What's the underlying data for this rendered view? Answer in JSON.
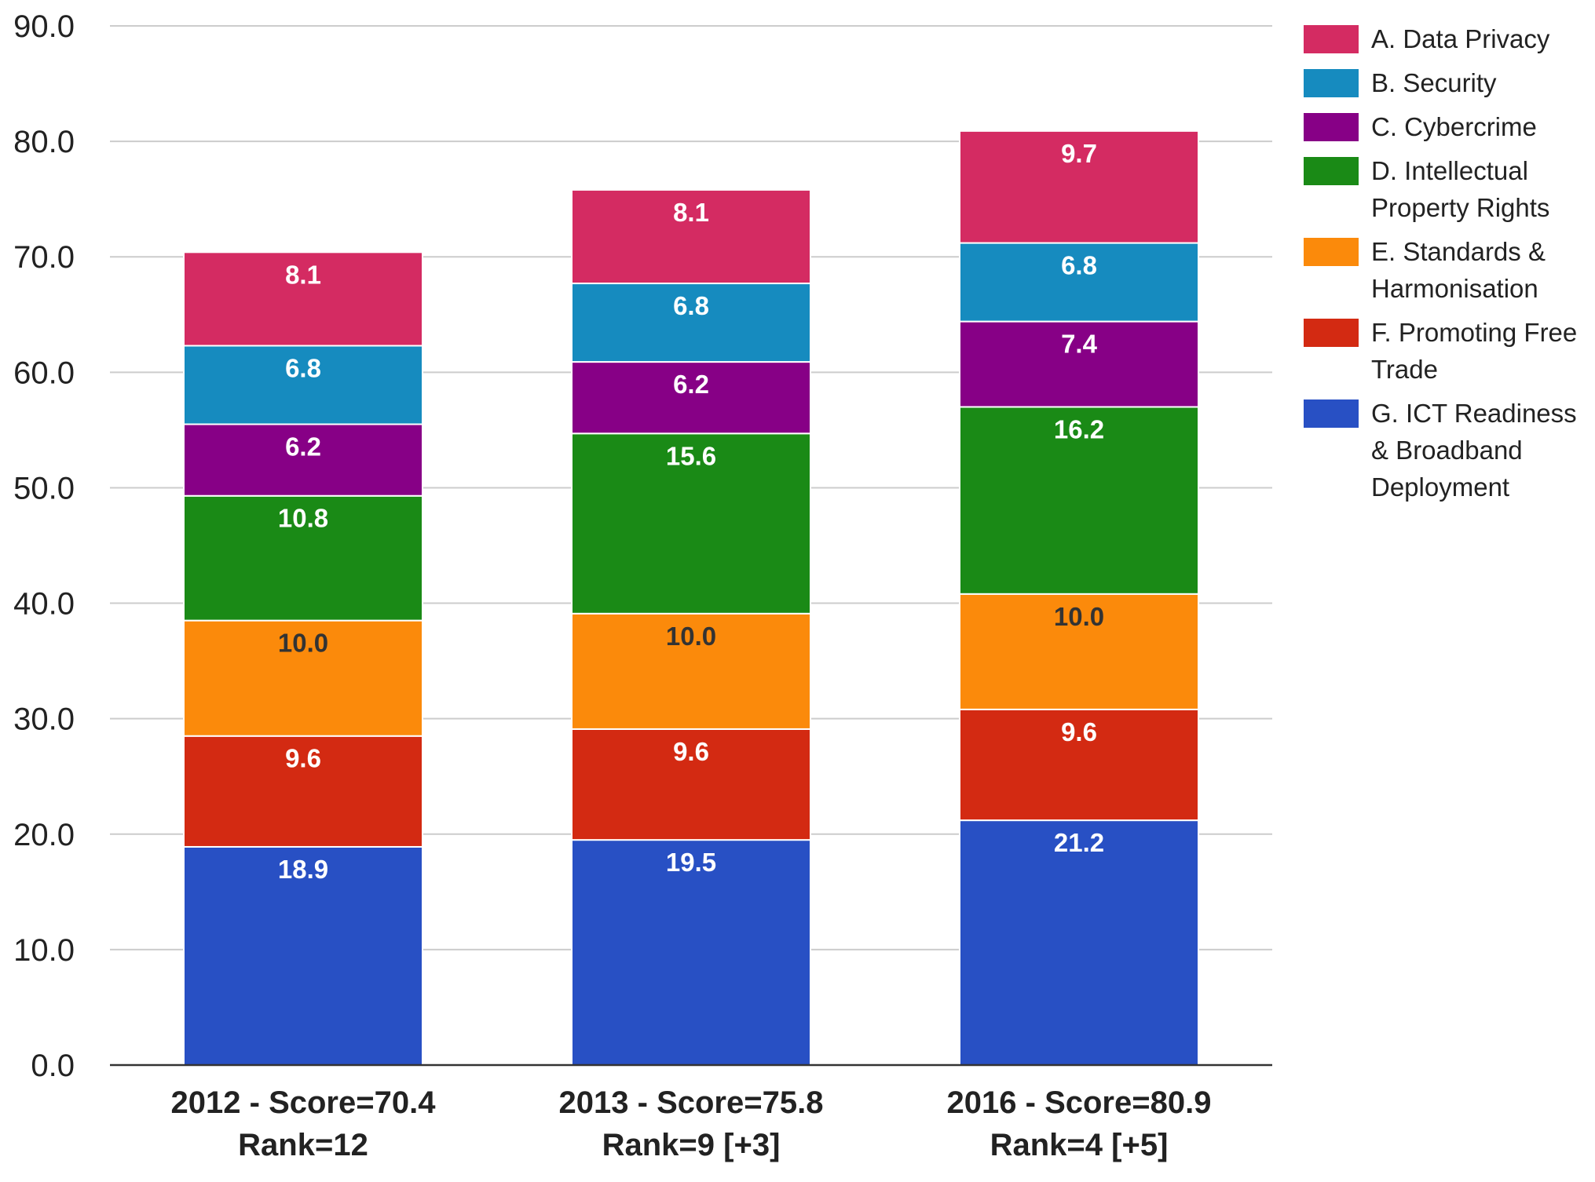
{
  "chart_data": {
    "type": "bar",
    "stacked": true,
    "categories": [
      [
        "2012 - Score=70.4",
        "Rank=12"
      ],
      [
        "2013 - Score=75.8",
        "Rank=9 [+3]"
      ],
      [
        "2016 - Score=80.9",
        "Rank=4 [+5]"
      ]
    ],
    "series": [
      {
        "name": "G. ICT Readiness & Broadband Deployment",
        "color": "#2850c4",
        "label_color": "#ffffff",
        "values": [
          18.9,
          19.5,
          21.2
        ]
      },
      {
        "name": "F. Promoting Free Trade",
        "color": "#d32a12",
        "label_color": "#ffffff",
        "values": [
          9.6,
          9.6,
          9.6
        ]
      },
      {
        "name": "E. Standards & Harmonisation",
        "color": "#fb8a0b",
        "label_color": "#333333",
        "values": [
          10.0,
          10.0,
          10.0
        ]
      },
      {
        "name": "D. Intellectual Property Rights",
        "color": "#1a8a16",
        "label_color": "#ffffff",
        "values": [
          10.8,
          15.6,
          16.2
        ]
      },
      {
        "name": "C. Cybercrime",
        "color": "#870086",
        "label_color": "#ffffff",
        "values": [
          6.2,
          6.2,
          7.4
        ]
      },
      {
        "name": "B. Security",
        "color": "#168bbf",
        "label_color": "#ffffff",
        "values": [
          6.8,
          6.8,
          6.8
        ]
      },
      {
        "name": "A. Data Privacy",
        "color": "#d42b62",
        "label_color": "#ffffff",
        "values": [
          8.1,
          8.1,
          9.7
        ]
      }
    ],
    "legend_order": [
      "A. Data Privacy",
      "B. Security",
      "C. Cybercrime",
      "D. Intellectual Property Rights",
      "E. Standards & Harmonisation",
      "F. Promoting Free Trade",
      "G. ICT Readiness & Broadband Deployment"
    ],
    "legend_lines": [
      [
        "A. Data Privacy"
      ],
      [
        "B. Security"
      ],
      [
        "C. Cybercrime"
      ],
      [
        "D. Intellectual",
        "Property Rights"
      ],
      [
        "E. Standards &",
        "Harmonisation"
      ],
      [
        "F. Promoting Free",
        "Trade"
      ],
      [
        "G. ICT Readiness",
        "& Broadband",
        "Deployment"
      ]
    ],
    "y_ticks": [
      "0.0",
      "10.0",
      "20.0",
      "30.0",
      "40.0",
      "50.0",
      "60.0",
      "70.0",
      "80.0",
      "90.0"
    ],
    "ylim": [
      0,
      90
    ],
    "grid": true,
    "legend_position": "right",
    "title": "",
    "xlabel": "",
    "ylabel": ""
  }
}
